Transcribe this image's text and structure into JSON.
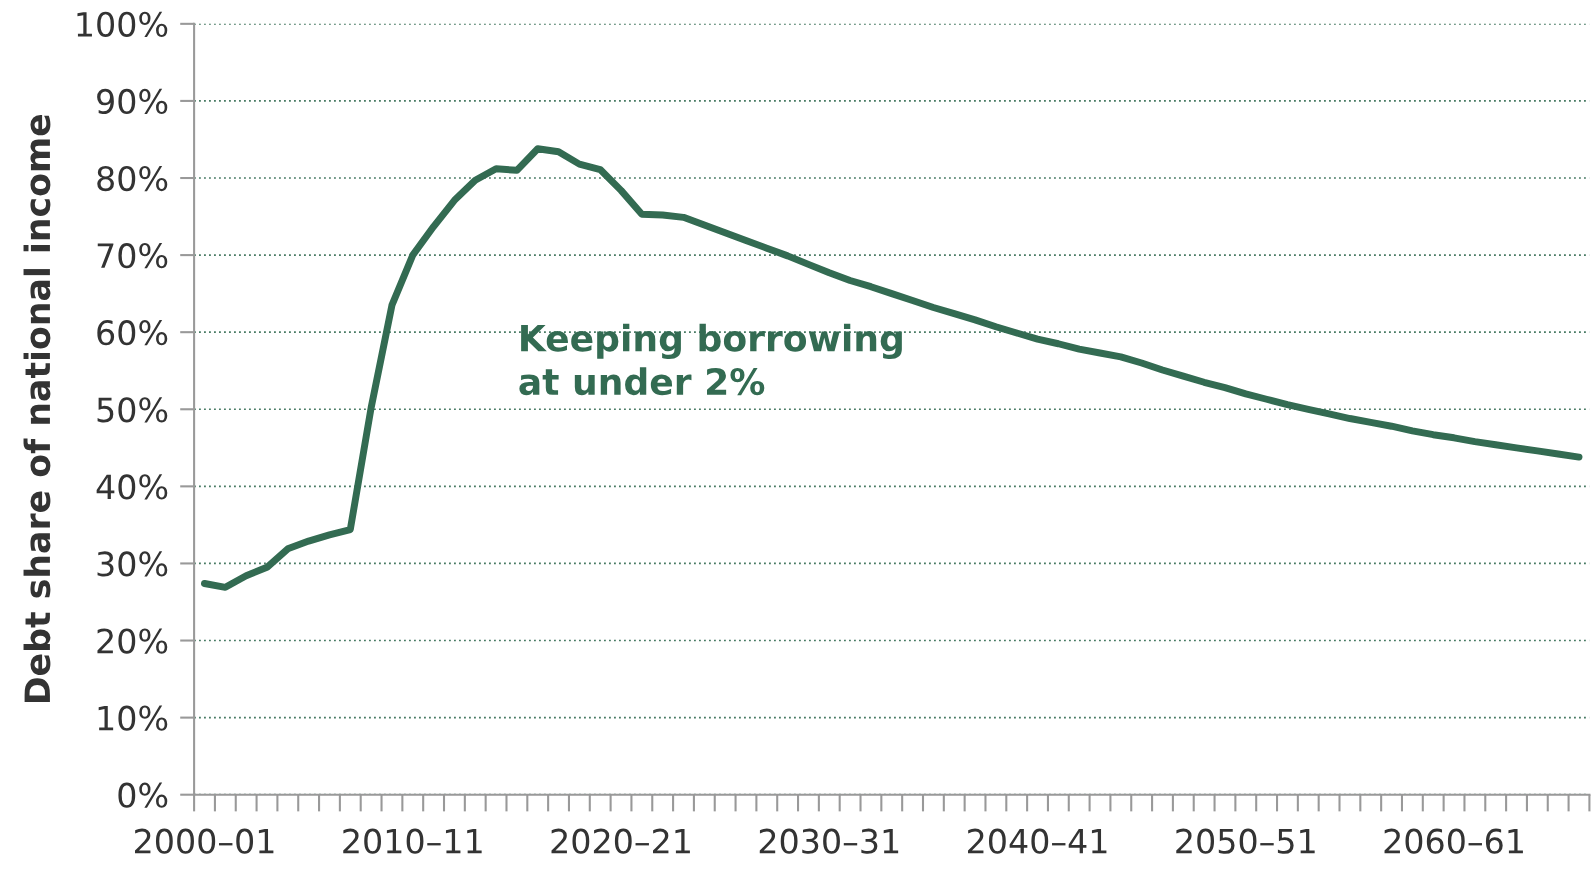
{
  "chart_data": {
    "type": "line",
    "ylabel": "Debt share of national income",
    "categories": [
      "2000–01",
      null,
      null,
      null,
      null,
      null,
      null,
      null,
      null,
      null,
      "2010–11",
      null,
      null,
      null,
      null,
      null,
      null,
      null,
      null,
      null,
      "2020–21",
      null,
      null,
      null,
      null,
      null,
      null,
      null,
      null,
      null,
      "2030–31",
      null,
      null,
      null,
      null,
      null,
      null,
      null,
      null,
      null,
      "2040–41",
      null,
      null,
      null,
      null,
      null,
      null,
      null,
      null,
      null,
      "2050–51",
      null,
      null,
      null,
      null,
      null,
      null,
      null,
      null,
      null,
      "2060–61",
      null,
      null,
      null,
      null,
      null,
      null
    ],
    "series": [
      {
        "name": "Keeping borrowing at under 2%",
        "color": "#336b52",
        "values": [
          27.4,
          26.9,
          28.4,
          29.5,
          31.9,
          32.9,
          33.7,
          34.4,
          50.2,
          63.5,
          70.0,
          73.7,
          77.1,
          79.7,
          81.2,
          81.0,
          83.8,
          83.4,
          81.8,
          81.1,
          78.4,
          75.3,
          75.2,
          74.9,
          73.9,
          72.9,
          71.9,
          70.9,
          69.9,
          68.8,
          67.7,
          66.7,
          65.9,
          65.0,
          64.1,
          63.2,
          62.4,
          61.6,
          60.7,
          59.9,
          59.1,
          58.5,
          57.8,
          57.3,
          56.8,
          56.0,
          55.1,
          54.3,
          53.5,
          52.8,
          52.0,
          51.3,
          50.6,
          50.0,
          49.4,
          48.8,
          48.3,
          47.8,
          47.2,
          46.7,
          46.3,
          45.8,
          45.4,
          45.0,
          44.6,
          44.2,
          43.8
        ]
      }
    ],
    "ylim": [
      0,
      100
    ],
    "yticks": [
      {
        "value": 0,
        "label": "0%"
      },
      {
        "value": 10,
        "label": "10%"
      },
      {
        "value": 20,
        "label": "20%"
      },
      {
        "value": 30,
        "label": "30%"
      },
      {
        "value": 40,
        "label": "40%"
      },
      {
        "value": 50,
        "label": "50%"
      },
      {
        "value": 60,
        "label": "60%"
      },
      {
        "value": 70,
        "label": "70%"
      },
      {
        "value": 80,
        "label": "80%"
      },
      {
        "value": 90,
        "label": "90%"
      },
      {
        "value": 100,
        "label": "100%"
      }
    ],
    "grid": "y",
    "legend": false,
    "marker": "none",
    "line_style": "solid"
  }
}
